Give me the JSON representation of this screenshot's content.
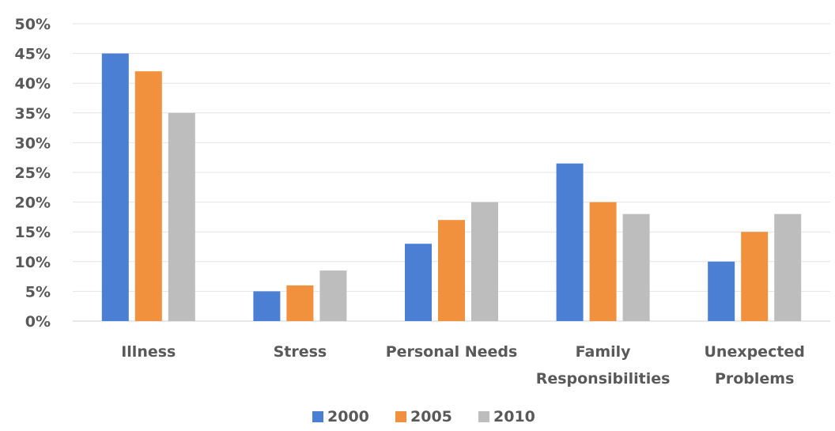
{
  "chart_data": {
    "type": "bar",
    "categories": [
      [
        "Illness"
      ],
      [
        "Stress"
      ],
      [
        "Personal Needs"
      ],
      [
        "Family",
        "Responsibilities"
      ],
      [
        "Unexpected",
        "Problems"
      ]
    ],
    "series": [
      {
        "name": "2000",
        "color": "#4a7fd4",
        "values": [
          45,
          5,
          13,
          26.5,
          10
        ]
      },
      {
        "name": "2005",
        "color": "#f2913d",
        "values": [
          42,
          6,
          17,
          20,
          15
        ]
      },
      {
        "name": "2010",
        "color": "#bdbdbd",
        "values": [
          35,
          8.5,
          20,
          18,
          18
        ]
      }
    ],
    "ylim": [
      0,
      50
    ],
    "yticks": [
      "0%",
      "5%",
      "10%",
      "15%",
      "20%",
      "25%",
      "30%",
      "35%",
      "40%",
      "45%",
      "50%"
    ],
    "ytick_values": [
      0,
      5,
      10,
      15,
      20,
      25,
      30,
      35,
      40,
      45,
      50
    ],
    "grid": true,
    "legend_position": "bottom"
  }
}
